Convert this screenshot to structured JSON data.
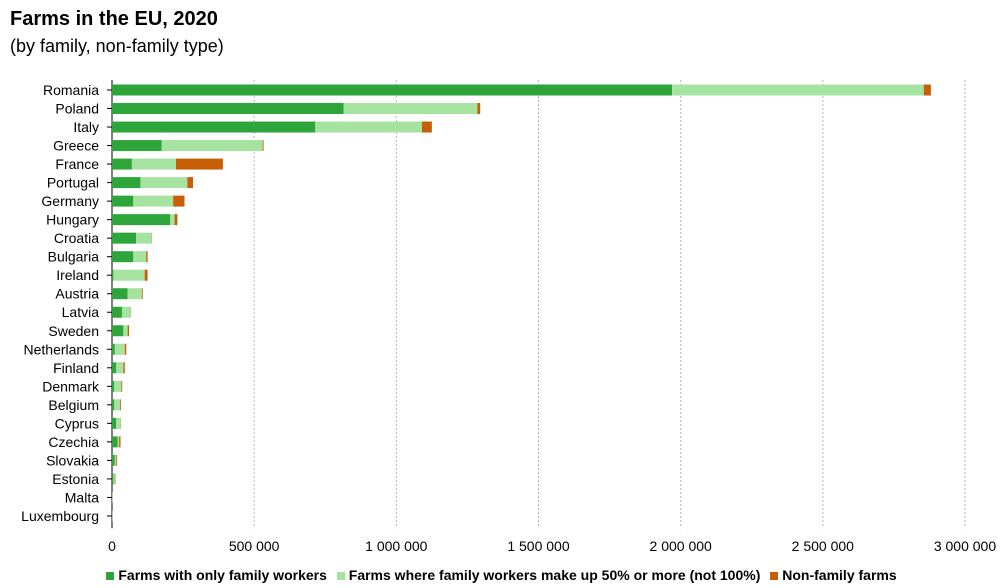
{
  "chart_data": {
    "type": "bar",
    "orientation": "horizontal",
    "stacked": true,
    "title": "Farms in the EU, 2020",
    "subtitle": "(by family, non-family type)",
    "categories": [
      "Romania",
      "Poland",
      "Italy",
      "Greece",
      "France",
      "Portugal",
      "Germany",
      "Hungary",
      "Croatia",
      "Bulgaria",
      "Ireland",
      "Austria",
      "Latvia",
      "Sweden",
      "Netherlands",
      "Finland",
      "Denmark",
      "Belgium",
      "Cyprus",
      "Czechia",
      "Slovakia",
      "Estonia",
      "Malta",
      "Luxembourg"
    ],
    "series": [
      {
        "name": "Farms with only family workers",
        "color": "#2ea53a",
        "values": [
          1970000,
          815000,
          715000,
          175000,
          70000,
          100000,
          75000,
          205000,
          85000,
          75000,
          5000,
          55000,
          35000,
          40000,
          10000,
          15000,
          8000,
          8000,
          15000,
          20000,
          10000,
          5000,
          500,
          300
        ]
      },
      {
        "name": "Farms where family workers make up 50% or more (not 100%)",
        "color": "#a6e3a1",
        "values": [
          885000,
          470000,
          375000,
          355000,
          155000,
          165000,
          140000,
          15000,
          55000,
          45000,
          110000,
          50000,
          30000,
          15000,
          35000,
          25000,
          25000,
          20000,
          15000,
          5000,
          5000,
          5000,
          1000,
          1000
        ]
      },
      {
        "name": "Non-family farms",
        "color": "#c65f06",
        "values": [
          25000,
          10000,
          35000,
          3000,
          165000,
          20000,
          40000,
          10000,
          1000,
          5000,
          10000,
          3000,
          1000,
          5000,
          5000,
          5000,
          3000,
          3000,
          1000,
          5000,
          3000,
          2000,
          200,
          300
        ]
      }
    ],
    "xlim": [
      0,
      3000000
    ],
    "xticks": [
      "0",
      "500 000",
      "1 000 000",
      "1 500 000",
      "2 000 000",
      "2 500 000",
      "3 000 000"
    ],
    "grid": true,
    "legend_position": "bottom"
  }
}
